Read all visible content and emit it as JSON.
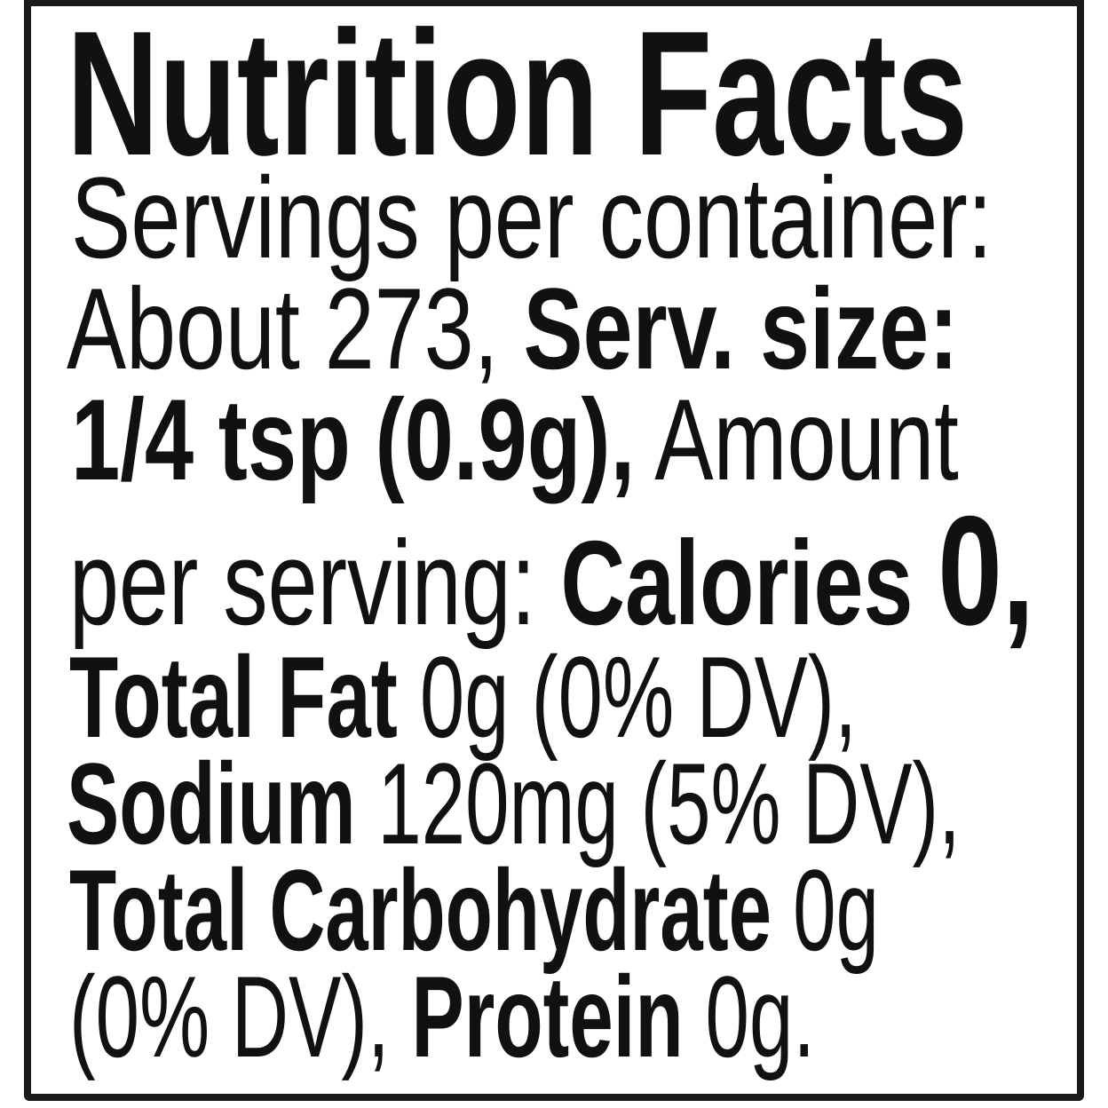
{
  "label": {
    "title": "Nutrition Facts",
    "servings_label": "Servings per container:",
    "servings_value": "About 273,",
    "serving_size_label": "Serv. size:",
    "serving_size_value": "1/4 tsp (0.9g),",
    "amount_label": "Amount",
    "per_serving_label": "per serving:",
    "calories_label": "Calories",
    "calories_value": "0,",
    "total_fat_label": "Total Fat",
    "total_fat_value": "0g (0% DV),",
    "sodium_label": "Sodium",
    "sodium_value": "120mg (5% DV),",
    "carb_label": "Total Carbohydrate",
    "carb_value": "0g",
    "carb_dv": "(0% DV),",
    "protein_label": "Protein",
    "protein_value": "0g."
  }
}
